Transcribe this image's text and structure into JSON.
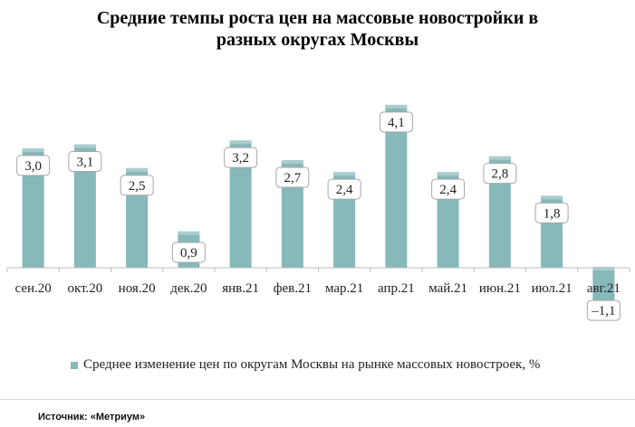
{
  "chart_data": {
    "type": "bar",
    "title_lines": [
      "Средние темпы роста цен на массовые новостройки  в",
      "разных округах Москвы"
    ],
    "categories": [
      "сен.20",
      "окт.20",
      "ноя.20",
      "дек.20",
      "янв.21",
      "фев.21",
      "мар.21",
      "апр.21",
      "май.21",
      "июн.21",
      "июл.21",
      "авг.21"
    ],
    "series": [
      {
        "name": "Среднее изменение цен по округам Москвы на рынке массовых новостроек, %",
        "values": [
          3.0,
          3.1,
          2.5,
          0.9,
          3.2,
          2.7,
          2.4,
          4.1,
          2.4,
          2.8,
          1.8,
          -1.1
        ],
        "labels": [
          "3,0",
          "3,1",
          "2,5",
          "0,9",
          "3,2",
          "2,7",
          "2,4",
          "4,1",
          "2,4",
          "2,8",
          "1,8",
          "–1,1"
        ]
      }
    ],
    "legend_position": "bottom",
    "grid": false,
    "colors": {
      "bar": "#87b8ba",
      "bar_top": "#a9cdcf"
    }
  },
  "source": "Источник: «Метриум»"
}
